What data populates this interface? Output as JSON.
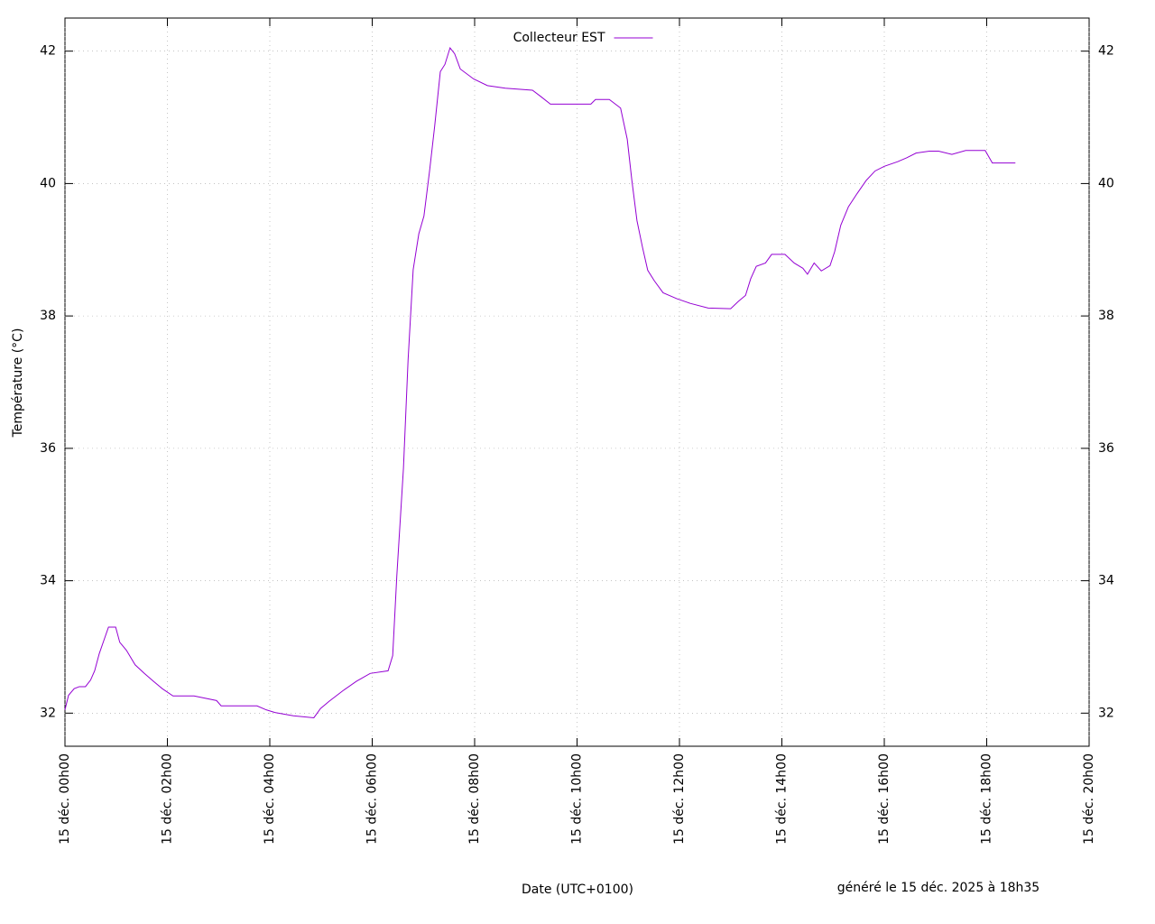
{
  "chart_data": {
    "type": "line",
    "ylabel": "Température (°C)",
    "xlabel": "Date (UTC+0100)",
    "footer": "généré le 15 déc. 2025 à 18h35",
    "legend_position": "top-center",
    "grid": true,
    "xlim": [
      0,
      20
    ],
    "xticks": [
      {
        "value": 0,
        "label": "15 déc. 00h00"
      },
      {
        "value": 2,
        "label": "15 déc. 02h00"
      },
      {
        "value": 4,
        "label": "15 déc. 04h00"
      },
      {
        "value": 6,
        "label": "15 déc. 06h00"
      },
      {
        "value": 8,
        "label": "15 déc. 08h00"
      },
      {
        "value": 10,
        "label": "15 déc. 10h00"
      },
      {
        "value": 12,
        "label": "15 déc. 12h00"
      },
      {
        "value": 14,
        "label": "15 déc. 14h00"
      },
      {
        "value": 16,
        "label": "15 déc. 16h00"
      },
      {
        "value": 18,
        "label": "15 déc. 18h00"
      },
      {
        "value": 20,
        "label": "15 déc. 20h00"
      }
    ],
    "ylim": [
      31.5,
      42.5
    ],
    "yticks": [
      32,
      34,
      36,
      38,
      40,
      42
    ],
    "x": [
      0,
      0.07,
      0.18,
      0.28,
      0.4,
      0.5,
      0.58,
      0.67,
      0.76,
      0.85,
      0.99,
      1.07,
      1.2,
      1.37,
      1.55,
      1.73,
      1.9,
      2.11,
      2.52,
      2.96,
      3.05,
      3.75,
      3.93,
      4.1,
      4.46,
      4.86,
      4.99,
      5.16,
      5.43,
      5.69,
      5.96,
      6.31,
      6.4,
      6.48,
      6.61,
      6.7,
      6.8,
      6.91,
      7.01,
      7.12,
      7.22,
      7.33,
      7.42,
      7.52,
      7.61,
      7.72,
      7.98,
      8.25,
      8.6,
      9.13,
      9.3,
      9.48,
      10.27,
      10.36,
      10.63,
      10.85,
      10.98,
      11.07,
      11.17,
      11.28,
      11.38,
      11.51,
      11.68,
      11.95,
      12.21,
      12.56,
      13.0,
      13.15,
      13.29,
      13.39,
      13.5,
      13.68,
      13.8,
      14.06,
      14.24,
      14.41,
      14.5,
      14.63,
      14.77,
      14.94,
      15.03,
      15.15,
      15.3,
      15.47,
      15.65,
      15.82,
      16.0,
      16.26,
      16.44,
      16.62,
      16.88,
      17.06,
      17.32,
      17.59,
      17.97,
      18.11,
      18.56
    ],
    "series": [
      {
        "name": "Collecteur EST",
        "color": "#9400d3",
        "values": [
          32.05,
          32.27,
          32.37,
          32.4,
          32.4,
          32.5,
          32.64,
          32.9,
          33.1,
          33.3,
          33.3,
          33.07,
          32.95,
          32.73,
          32.6,
          32.48,
          32.37,
          32.26,
          32.26,
          32.19,
          32.11,
          32.11,
          32.05,
          32.01,
          31.96,
          31.93,
          32.07,
          32.18,
          32.34,
          32.48,
          32.6,
          32.64,
          32.87,
          34.07,
          35.7,
          37.33,
          38.7,
          39.24,
          39.51,
          40.19,
          40.87,
          41.69,
          41.8,
          42.05,
          41.96,
          41.73,
          41.58,
          41.48,
          41.44,
          41.41,
          41.31,
          41.2,
          41.2,
          41.27,
          41.27,
          41.14,
          40.67,
          40.05,
          39.44,
          39.03,
          38.69,
          38.53,
          38.35,
          38.26,
          38.19,
          38.12,
          38.11,
          38.22,
          38.31,
          38.56,
          38.75,
          38.8,
          38.93,
          38.93,
          38.8,
          38.72,
          38.63,
          38.8,
          38.68,
          38.76,
          38.97,
          39.37,
          39.65,
          39.85,
          40.05,
          40.19,
          40.26,
          40.33,
          40.39,
          40.46,
          40.49,
          40.49,
          40.44,
          40.5,
          40.5,
          40.31,
          40.31
        ]
      }
    ]
  }
}
